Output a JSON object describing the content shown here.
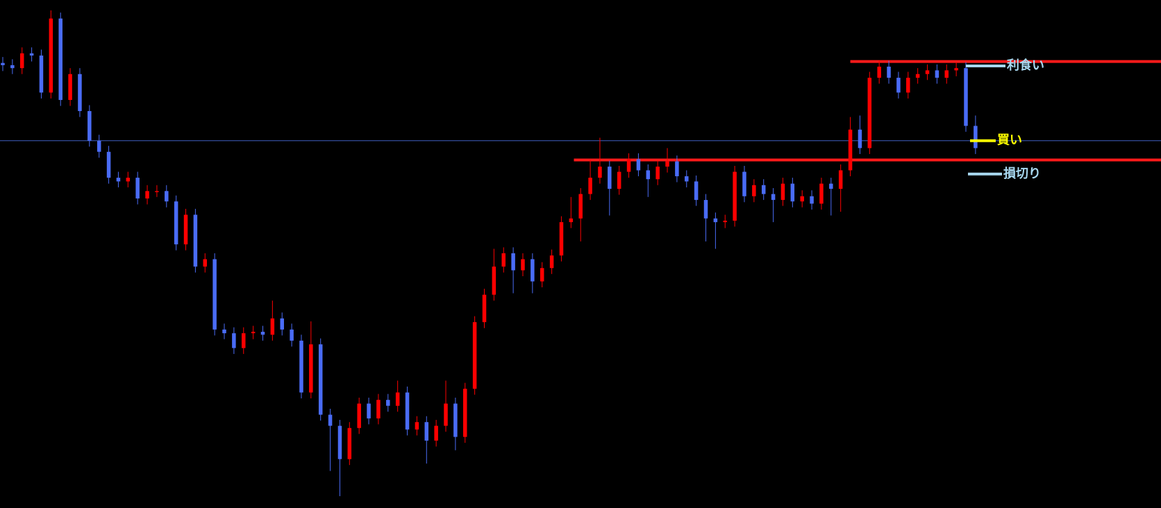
{
  "chart_data": {
    "type": "candlestick",
    "ylim": [
      0,
      686
    ],
    "up_color": "#ff0000",
    "down_color": "#4a6cf7",
    "open": [
      601,
      598,
      594,
      614,
      611,
      561,
      661,
      551,
      586,
      536,
      496,
      481,
      446,
      441,
      446,
      418,
      428,
      428,
      414,
      356,
      396,
      326,
      336,
      241,
      236,
      216,
      236,
      238,
      234,
      256,
      241,
      226,
      156,
      221,
      126,
      111,
      66,
      108,
      141,
      121,
      146,
      138,
      156,
      106,
      116,
      91,
      111,
      141,
      96,
      161,
      251,
      288,
      326,
      344,
      321,
      336,
      306,
      324,
      341,
      386,
      391,
      424,
      446,
      461,
      431,
      454,
      471,
      456,
      444,
      461,
      468,
      448,
      441,
      416,
      391,
      386,
      388,
      454,
      421,
      436,
      424,
      416,
      438,
      414,
      421,
      411,
      438,
      431,
      456,
      511,
      486,
      581,
      596,
      581,
      561,
      581,
      586,
      591,
      581,
      591,
      594,
      516
    ],
    "high": [
      609,
      606,
      622,
      622,
      619,
      672,
      669,
      594,
      594,
      544,
      504,
      489,
      454,
      454,
      454,
      436,
      436,
      436,
      422,
      404,
      404,
      344,
      344,
      249,
      244,
      244,
      246,
      246,
      280,
      264,
      249,
      234,
      252,
      229,
      134,
      119,
      116,
      149,
      149,
      154,
      154,
      172,
      164,
      124,
      124,
      119,
      172,
      149,
      169,
      259,
      296,
      350,
      352,
      352,
      344,
      344,
      332,
      349,
      394,
      420,
      432,
      470,
      500,
      469,
      462,
      479,
      479,
      464,
      469,
      486,
      476,
      456,
      449,
      424,
      399,
      396,
      462,
      462,
      444,
      444,
      432,
      446,
      446,
      429,
      429,
      446,
      446,
      464,
      528,
      530,
      589,
      604,
      604,
      589,
      589,
      594,
      599,
      599,
      599,
      602,
      602,
      530
    ],
    "low": [
      590,
      586,
      586,
      603,
      553,
      553,
      543,
      543,
      528,
      488,
      473,
      438,
      433,
      433,
      410,
      410,
      420,
      406,
      348,
      348,
      318,
      318,
      233,
      228,
      208,
      208,
      228,
      226,
      226,
      233,
      218,
      148,
      148,
      118,
      50,
      16,
      58,
      100,
      113,
      113,
      130,
      130,
      98,
      98,
      60,
      83,
      103,
      78,
      88,
      153,
      243,
      280,
      318,
      290,
      313,
      290,
      298,
      316,
      333,
      378,
      360,
      416,
      438,
      395,
      423,
      446,
      448,
      420,
      436,
      453,
      440,
      433,
      408,
      360,
      350,
      378,
      380,
      413,
      413,
      416,
      386,
      408,
      406,
      406,
      403,
      403,
      395,
      400,
      448,
      478,
      478,
      573,
      573,
      553,
      553,
      573,
      578,
      573,
      573,
      583,
      508,
      478
    ],
    "close": [
      598,
      594,
      614,
      611,
      561,
      661,
      551,
      586,
      536,
      496,
      481,
      446,
      441,
      446,
      418,
      428,
      428,
      414,
      356,
      396,
      326,
      336,
      241,
      236,
      216,
      236,
      238,
      234,
      256,
      241,
      226,
      156,
      221,
      126,
      111,
      66,
      108,
      141,
      121,
      146,
      138,
      156,
      106,
      116,
      91,
      111,
      141,
      96,
      161,
      251,
      288,
      326,
      344,
      321,
      336,
      306,
      324,
      341,
      386,
      391,
      424,
      446,
      461,
      431,
      454,
      471,
      456,
      444,
      461,
      468,
      448,
      441,
      416,
      391,
      386,
      388,
      454,
      421,
      436,
      424,
      416,
      438,
      414,
      421,
      411,
      438,
      431,
      456,
      511,
      486,
      581,
      596,
      581,
      561,
      581,
      586,
      591,
      581,
      591,
      594,
      516,
      486
    ],
    "lines": [
      {
        "value": 603,
        "start": 88,
        "color": "#ff1a1a"
      },
      {
        "value": 470,
        "start": 59.3,
        "color": "#ff1a1a"
      },
      {
        "value": 496,
        "start": -0.3,
        "color": "#3f5fbf"
      }
    ],
    "orders": [
      {
        "label": "利食い",
        "value": 597,
        "color": "#a8d8f0"
      },
      {
        "label": "買い",
        "value": 496,
        "color": "#ffff00"
      },
      {
        "label": "損切り",
        "value": 451,
        "color": "#a8d8f0"
      }
    ]
  }
}
